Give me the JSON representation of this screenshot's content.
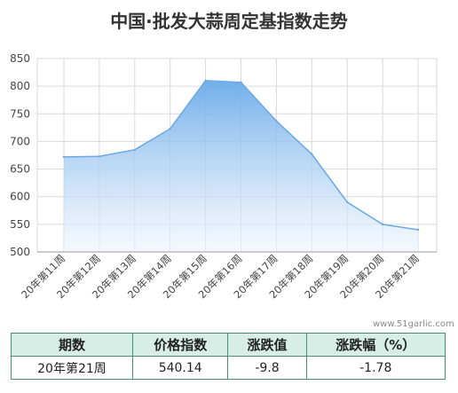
{
  "title": "中国·批发大蒜周定基指数走势",
  "watermark": "www.51garlic.com",
  "colors": {
    "area_top": "#6aaae8",
    "area_bottom": "#eef5fd",
    "line": "#6aa8e6",
    "grid": "#d9d9d9",
    "table_border": "#4a8c7a",
    "table_header": "#d6eee6"
  },
  "chart_data": {
    "type": "area",
    "title": "中国·批发大蒜周定基指数走势",
    "xlabel": "",
    "ylabel": "",
    "categories": [
      "20年第11周",
      "20年第12周",
      "20年第13周",
      "20年第14周",
      "20年第15周",
      "20年第16周",
      "20年第17周",
      "20年第18周",
      "20年第19周",
      "20年第20周",
      "20年第21周"
    ],
    "values": [
      672,
      673,
      685,
      723,
      810,
      807,
      737,
      677,
      590,
      550,
      540.14
    ],
    "ylim": [
      500,
      850
    ],
    "yticks": [
      500,
      550,
      600,
      650,
      700,
      750,
      800,
      850
    ],
    "grid": true,
    "legend": "none"
  },
  "table": {
    "headers": [
      "期数",
      "价格指数",
      "涨跌值",
      "涨跌幅（%）"
    ],
    "row": [
      "20年第21周",
      "540.14",
      "-9.8",
      "-1.78"
    ]
  }
}
